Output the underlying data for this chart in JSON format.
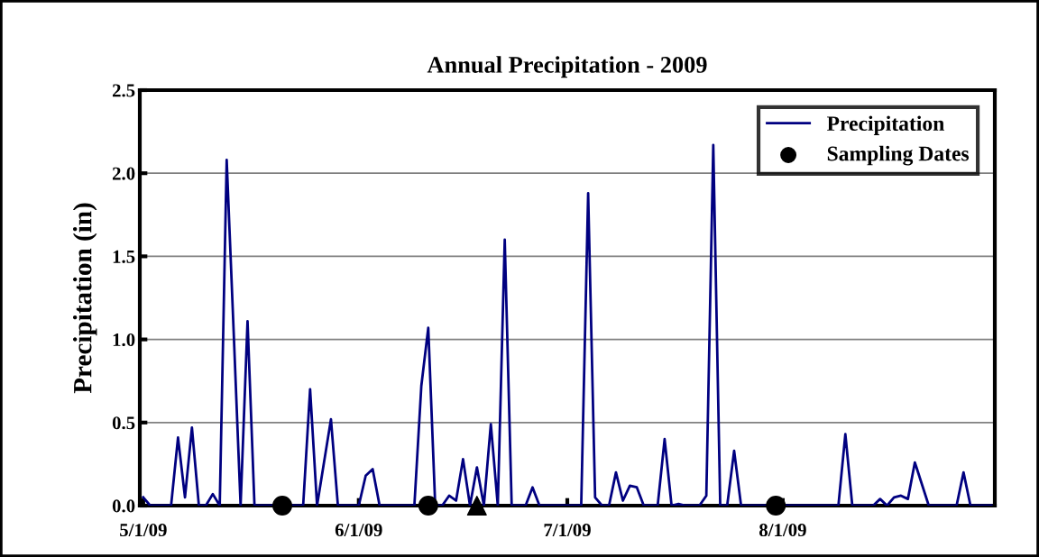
{
  "chart_data": {
    "type": "line",
    "title": "Annual Precipitation - 2009",
    "ylabel": "Precipitation (in)",
    "xlim": [
      "2009-04-30T12:00",
      "2009-08-31T12:00"
    ],
    "xticks": [
      {
        "value": "2009-05-01",
        "label": "5/1/09"
      },
      {
        "value": "2009-06-01",
        "label": "6/1/09"
      },
      {
        "value": "2009-07-01",
        "label": "7/1/09"
      },
      {
        "value": "2009-08-01",
        "label": "8/1/09"
      }
    ],
    "ylim": [
      0,
      2.5
    ],
    "yticks": [
      {
        "value": 0,
        "label": "0.0"
      },
      {
        "value": 0.5,
        "label": "0.5"
      },
      {
        "value": 1,
        "label": "1.0"
      },
      {
        "value": 1.5,
        "label": "1.5"
      },
      {
        "value": 2,
        "label": "2.0"
      },
      {
        "value": 2.5,
        "label": "2.5"
      }
    ],
    "grid": "y",
    "legend": "top right",
    "series": [
      {
        "name": "Precipitation",
        "color": "#000080",
        "marker": "none",
        "line_style": "solid",
        "x": [
          "2009-05-01",
          "2009-05-02",
          "2009-05-03",
          "2009-05-04",
          "2009-05-05",
          "2009-05-06",
          "2009-05-07",
          "2009-05-08",
          "2009-05-09",
          "2009-05-10",
          "2009-05-11",
          "2009-05-12",
          "2009-05-13",
          "2009-05-14",
          "2009-05-15",
          "2009-05-16",
          "2009-05-17",
          "2009-05-18",
          "2009-05-19",
          "2009-05-20",
          "2009-05-21",
          "2009-05-22",
          "2009-05-23",
          "2009-05-24",
          "2009-05-25",
          "2009-05-26",
          "2009-05-27",
          "2009-05-28",
          "2009-05-29",
          "2009-05-30",
          "2009-05-31",
          "2009-06-01",
          "2009-06-02",
          "2009-06-03",
          "2009-06-04",
          "2009-06-05",
          "2009-06-06",
          "2009-06-07",
          "2009-06-08",
          "2009-06-09",
          "2009-06-10",
          "2009-06-11",
          "2009-06-12",
          "2009-06-13",
          "2009-06-14",
          "2009-06-15",
          "2009-06-16",
          "2009-06-17",
          "2009-06-18",
          "2009-06-19",
          "2009-06-20",
          "2009-06-21",
          "2009-06-22",
          "2009-06-23",
          "2009-06-24",
          "2009-06-25",
          "2009-06-26",
          "2009-06-27",
          "2009-06-28",
          "2009-06-29",
          "2009-06-30",
          "2009-07-01",
          "2009-07-02",
          "2009-07-03",
          "2009-07-04",
          "2009-07-05",
          "2009-07-06",
          "2009-07-07",
          "2009-07-08",
          "2009-07-09",
          "2009-07-10",
          "2009-07-11",
          "2009-07-12",
          "2009-07-13",
          "2009-07-14",
          "2009-07-15",
          "2009-07-16",
          "2009-07-17",
          "2009-07-18",
          "2009-07-19",
          "2009-07-20",
          "2009-07-21",
          "2009-07-22",
          "2009-07-23",
          "2009-07-24",
          "2009-07-25",
          "2009-07-26",
          "2009-07-27",
          "2009-07-28",
          "2009-07-29",
          "2009-07-30",
          "2009-07-31",
          "2009-08-01",
          "2009-08-02",
          "2009-08-03",
          "2009-08-04",
          "2009-08-05",
          "2009-08-06",
          "2009-08-07",
          "2009-08-08",
          "2009-08-09",
          "2009-08-10",
          "2009-08-11",
          "2009-08-12",
          "2009-08-13",
          "2009-08-14",
          "2009-08-15",
          "2009-08-16",
          "2009-08-17",
          "2009-08-18",
          "2009-08-19",
          "2009-08-20",
          "2009-08-21",
          "2009-08-22",
          "2009-08-23",
          "2009-08-24",
          "2009-08-25",
          "2009-08-26",
          "2009-08-27",
          "2009-08-28",
          "2009-08-29",
          "2009-08-30",
          "2009-08-31"
        ],
        "values": [
          0.05,
          0,
          0,
          0,
          0,
          0.41,
          0.05,
          0.47,
          0,
          0,
          0.07,
          0,
          2.08,
          1.05,
          0,
          1.11,
          0,
          0,
          0,
          0,
          0,
          0,
          0,
          0,
          0.7,
          0,
          0.26,
          0.52,
          0,
          0,
          0,
          0,
          0.18,
          0.22,
          0,
          0,
          0,
          0,
          0,
          0,
          0.72,
          1.07,
          0,
          0,
          0.06,
          0.03,
          0.28,
          0,
          0.23,
          0,
          0.49,
          0,
          1.6,
          0,
          0,
          0,
          0.11,
          0,
          0,
          0,
          0,
          0,
          0,
          0,
          1.88,
          0.05,
          0,
          0,
          0.2,
          0.03,
          0.12,
          0.11,
          0,
          0,
          0,
          0.4,
          0,
          0.01,
          0,
          0,
          0,
          0.06,
          2.17,
          0,
          0,
          0.33,
          0,
          0,
          0,
          0,
          0,
          0,
          0,
          0,
          0,
          0,
          0,
          0,
          0,
          0,
          0,
          0.43,
          0,
          0,
          0,
          0,
          0.04,
          0,
          0.05,
          0.06,
          0.04,
          0.26,
          0.13,
          0,
          0,
          0,
          0,
          0,
          0.2,
          0,
          0,
          0,
          0
        ]
      },
      {
        "name": "Sampling Dates",
        "type": "scatter",
        "color": "#000000",
        "marker": "circle",
        "x": [
          "2009-05-21",
          "2009-06-11",
          "2009-07-31"
        ],
        "values": [
          0,
          0,
          0
        ]
      },
      {
        "type": "scatter",
        "color": "#000000",
        "marker": "triangle",
        "x": [
          "2009-06-18"
        ],
        "values": [
          0
        ]
      }
    ]
  }
}
